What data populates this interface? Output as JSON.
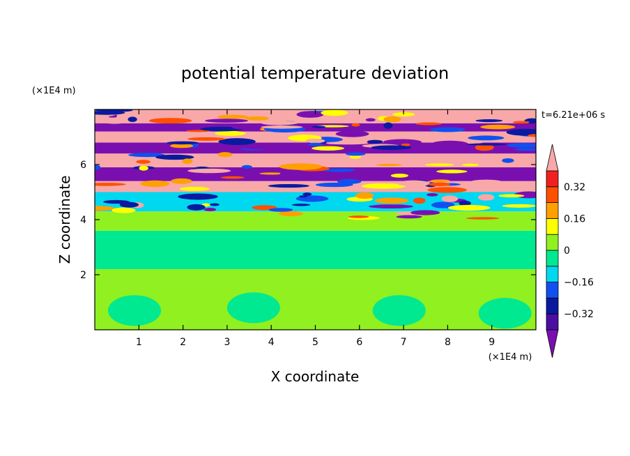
{
  "chart_data": {
    "type": "heatmap",
    "title": "potential temperature deviation",
    "xlabel": "X coordinate",
    "ylabel": "Z coordinate",
    "x_unit": "(×1E4 m)",
    "y_unit": "(×1E4 m)",
    "time_label": "t=6.21e+06 s",
    "xlim": [
      0,
      10
    ],
    "ylim": [
      0,
      8
    ],
    "x_ticks": [
      1,
      2,
      3,
      4,
      5,
      6,
      7,
      8,
      9
    ],
    "y_ticks": [
      2,
      4,
      6
    ],
    "colorbar": {
      "levels": [
        -0.4,
        -0.32,
        -0.24,
        -0.16,
        -0.08,
        0,
        0.08,
        0.16,
        0.24,
        0.32,
        0.4
      ],
      "tick_labels": [
        "0.32",
        "0.16",
        "0",
        "−0.16",
        "−0.32"
      ],
      "tick_values": [
        0.32,
        0.16,
        0,
        -0.16,
        -0.32
      ],
      "colors": [
        "#7a0fb0",
        "#4a0fa0",
        "#0a1aa0",
        "#1050f0",
        "#00d8f0",
        "#00e890",
        "#90f020",
        "#ffff00",
        "#ffa000",
        "#ff5000",
        "#f02020",
        "#f8a8a8"
      ],
      "under_color": "#7a0fb0",
      "over_color": "#f8a8a8"
    },
    "bands": [
      {
        "z_from": 0.0,
        "z_to": 1.8,
        "value": 0.04
      },
      {
        "z_from": 1.8,
        "z_to": 2.2,
        "value": 0.03
      },
      {
        "z_from": 2.2,
        "z_to": 3.6,
        "value": -0.03
      },
      {
        "z_from": 3.6,
        "z_to": 4.3,
        "value": 0.04
      },
      {
        "z_from": 4.3,
        "z_to": 5.0,
        "value": -0.12
      },
      {
        "z_from": 5.0,
        "z_to": 5.4,
        "value": 0.45
      },
      {
        "z_from": 5.4,
        "z_to": 5.9,
        "value": -0.45
      },
      {
        "z_from": 5.9,
        "z_to": 6.4,
        "value": 0.45
      },
      {
        "z_from": 6.4,
        "z_to": 6.8,
        "value": -0.45
      },
      {
        "z_from": 6.8,
        "z_to": 7.2,
        "value": 0.45
      },
      {
        "z_from": 7.2,
        "z_to": 7.5,
        "value": -0.45
      },
      {
        "z_from": 7.5,
        "z_to": 8.0,
        "value": 0.45
      }
    ]
  }
}
